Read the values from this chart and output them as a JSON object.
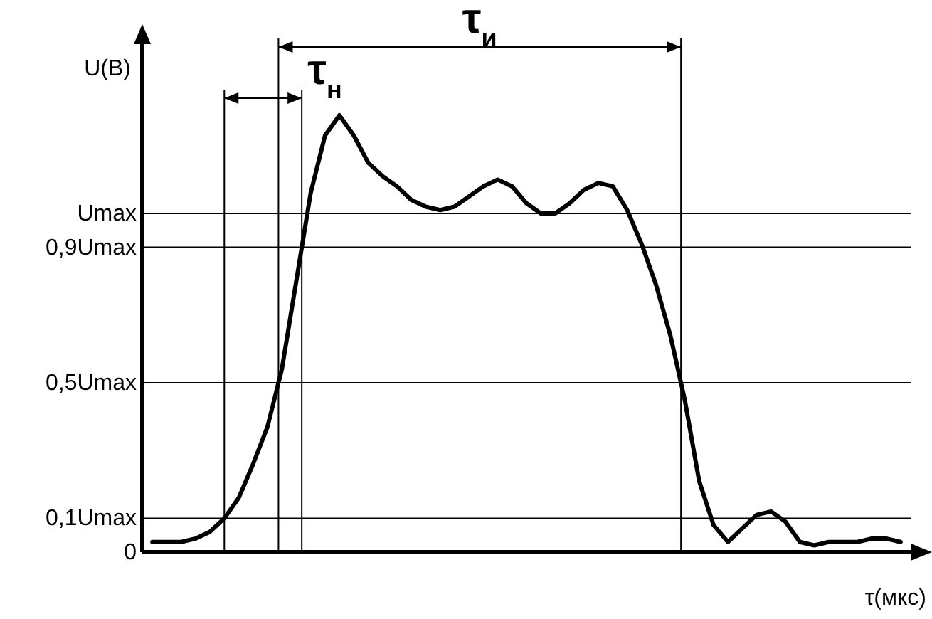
{
  "chart_data": {
    "type": "line",
    "ylabel": "U(В)",
    "xlabel": "τ(мкс)",
    "categories": [
      null,
      null,
      null,
      null,
      null,
      null,
      null,
      null,
      null,
      null,
      null,
      null,
      null,
      null,
      null,
      null,
      null,
      null,
      null,
      null,
      null,
      null,
      null,
      null,
      null,
      null,
      null,
      null,
      null,
      null,
      null,
      null,
      null,
      null,
      null,
      null,
      null,
      null,
      null,
      null,
      null,
      null,
      null,
      null,
      null,
      null,
      null,
      null,
      null,
      null,
      null,
      null,
      null
    ],
    "series": [
      {
        "color": "#000000",
        "values": [
          0.03,
          0.03,
          0.03,
          0.04,
          0.06,
          0.1,
          0.16,
          0.26,
          0.37,
          0.54,
          0.8,
          1.06,
          1.23,
          1.29,
          1.23,
          1.15,
          1.11,
          1.08,
          1.04,
          1.02,
          1.01,
          1.02,
          1.05,
          1.08,
          1.1,
          1.08,
          1.03,
          1.0,
          1.0,
          1.03,
          1.07,
          1.09,
          1.08,
          1.01,
          0.91,
          0.79,
          0.64,
          0.45,
          0.21,
          0.08,
          0.03,
          0.07,
          0.11,
          0.12,
          0.09,
          0.03,
          0.02,
          0.03,
          0.03,
          0.03,
          0.04,
          0.04,
          0.03
        ]
      }
    ],
    "ylim": [
      0,
      1.5
    ],
    "yticks": [
      {
        "value": 0,
        "label": "0"
      },
      {
        "value": 0.1,
        "label": "0,1Umax"
      },
      {
        "value": 0.5,
        "label": "0,5Umax"
      },
      {
        "value": 0.9,
        "label": "0,9Umax"
      },
      {
        "value": 1,
        "label": "Umax"
      }
    ],
    "tick_labels": "y",
    "ref_lines": [
      {
        "axis": "y",
        "value": 1
      },
      {
        "axis": "y",
        "value": 0.9
      },
      {
        "axis": "y",
        "value": 0.5
      },
      {
        "axis": "y",
        "value": 0.1
      }
    ],
    "annotations": [
      "τ$_{н}$",
      "τ$_{и}$"
    ],
    "marker": "none",
    "line_style": "solid"
  }
}
